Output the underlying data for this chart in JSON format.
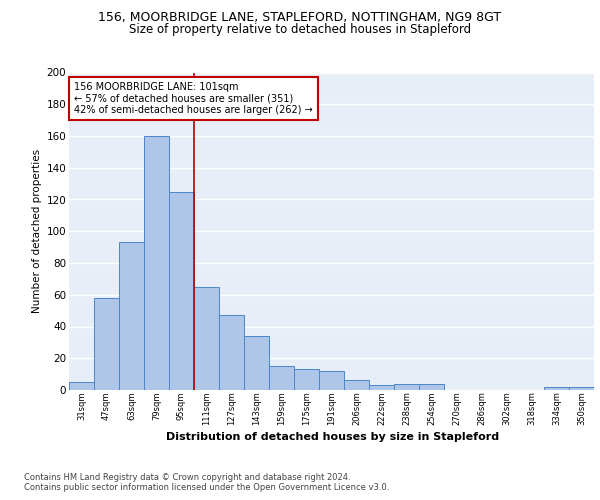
{
  "title1": "156, MOORBRIDGE LANE, STAPLEFORD, NOTTINGHAM, NG9 8GT",
  "title2": "Size of property relative to detached houses in Stapleford",
  "xlabel": "Distribution of detached houses by size in Stapleford",
  "ylabel": "Number of detached properties",
  "bar_labels": [
    "31sqm",
    "47sqm",
    "63sqm",
    "79sqm",
    "95sqm",
    "111sqm",
    "127sqm",
    "143sqm",
    "159sqm",
    "175sqm",
    "191sqm",
    "206sqm",
    "222sqm",
    "238sqm",
    "254sqm",
    "270sqm",
    "286sqm",
    "302sqm",
    "318sqm",
    "334sqm",
    "350sqm"
  ],
  "bar_values": [
    5,
    58,
    93,
    160,
    125,
    65,
    47,
    34,
    15,
    13,
    12,
    6,
    3,
    4,
    4,
    0,
    0,
    0,
    0,
    2,
    2
  ],
  "bar_color": "#aec6e8",
  "bar_edge_color": "#4a86c8",
  "bg_color": "#e8eef8",
  "grid_color": "#ffffff",
  "vline_x": 4.5,
  "vline_color": "#c00000",
  "annotation_text": "156 MOORBRIDGE LANE: 101sqm\n← 57% of detached houses are smaller (351)\n42% of semi-detached houses are larger (262) →",
  "annotation_box_color": "#ffffff",
  "annotation_box_edge_color": "#c00000",
  "footnote1": "Contains HM Land Registry data © Crown copyright and database right 2024.",
  "footnote2": "Contains public sector information licensed under the Open Government Licence v3.0.",
  "ylim": [
    0,
    200
  ],
  "yticks": [
    0,
    20,
    40,
    60,
    80,
    100,
    120,
    140,
    160,
    180,
    200
  ]
}
